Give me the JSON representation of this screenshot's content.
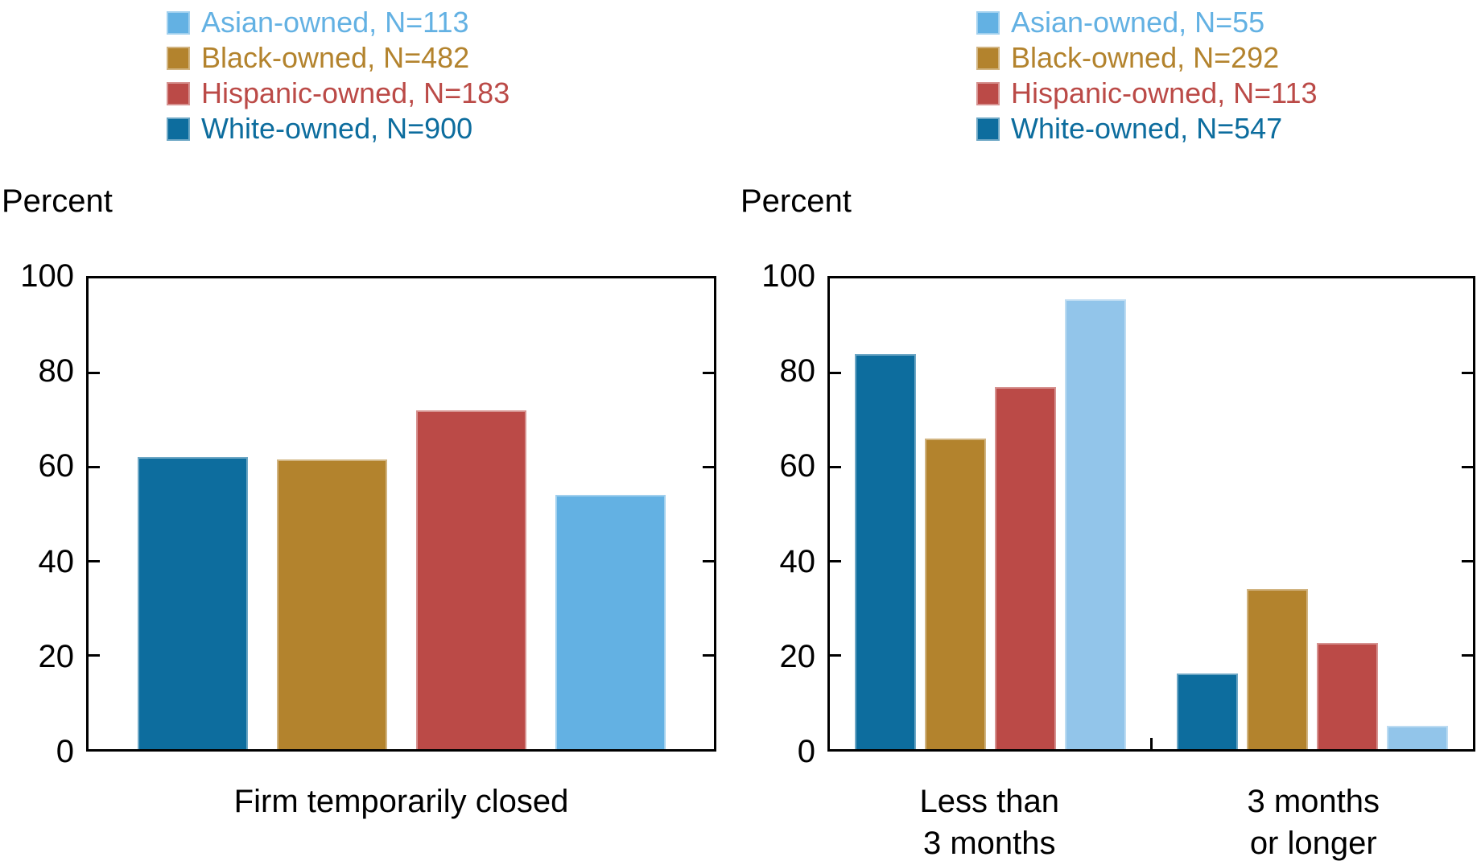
{
  "page": {
    "background": "#ffffff"
  },
  "colors": {
    "white_owned": "#0d6d9e",
    "black_owned": "#b3832d",
    "hispanic_owned": "#bb4a47",
    "asian_owned": "#63b1e3",
    "asian_owned_light": "#92c5ea",
    "axis": "#000000",
    "text": "#000000"
  },
  "legends": [
    {
      "name": "legend-left",
      "items": [
        {
          "label": "Asian-owned, N=113",
          "color": "#63b1e3"
        },
        {
          "label": "Black-owned, N=482",
          "color": "#b3832d"
        },
        {
          "label": "Hispanic-owned, N=183",
          "color": "#bb4a47"
        },
        {
          "label": "White-owned, N=900",
          "color": "#0d6d9e"
        }
      ]
    },
    {
      "name": "legend-right",
      "items": [
        {
          "label": "Asian-owned, N=55",
          "color": "#63b1e3"
        },
        {
          "label": "Black-owned, N=292",
          "color": "#b3832d"
        },
        {
          "label": "Hispanic-owned, N=113",
          "color": "#bb4a47"
        },
        {
          "label": "White-owned, N=547",
          "color": "#0d6d9e"
        }
      ]
    }
  ],
  "chart_data": [
    {
      "type": "bar",
      "title": "",
      "ylabel": "Percent",
      "xlabel": "",
      "ylim": [
        0,
        100
      ],
      "yticks": [
        0,
        20,
        40,
        60,
        80,
        100
      ],
      "grid": false,
      "legend_position": "top-left",
      "categories": [
        "Firm temporarily closed"
      ],
      "category_lines": [
        [
          "Firm temporarily closed"
        ]
      ],
      "series": [
        {
          "name": "White-owned, N=900",
          "color": "#0d6d9e",
          "values": [
            62
          ]
        },
        {
          "name": "Black-owned, N=482",
          "color": "#b3832d",
          "values": [
            61.5
          ]
        },
        {
          "name": "Hispanic-owned, N=183",
          "color": "#bb4a47",
          "values": [
            72
          ]
        },
        {
          "name": "Asian-owned, N=113",
          "color": "#63b1e3",
          "values": [
            54
          ]
        }
      ]
    },
    {
      "type": "bar",
      "title": "",
      "ylabel": "Percent",
      "xlabel": "",
      "ylim": [
        0,
        100
      ],
      "yticks": [
        0,
        20,
        40,
        60,
        80,
        100
      ],
      "grid": false,
      "legend_position": "top-right",
      "categories": [
        "Less than 3 months",
        "3 months or longer"
      ],
      "category_lines": [
        [
          "Less than",
          "3 months"
        ],
        [
          "3 months",
          "or longer"
        ]
      ],
      "series": [
        {
          "name": "White-owned, N=547",
          "color": "#0d6d9e",
          "values": [
            84,
            16
          ]
        },
        {
          "name": "Black-owned, N=292",
          "color": "#b3832d",
          "values": [
            66,
            34
          ]
        },
        {
          "name": "Hispanic-owned, N=113",
          "color": "#bb4a47",
          "values": [
            77,
            22.5
          ]
        },
        {
          "name": "Asian-owned, N=55",
          "color": "#92c5ea",
          "values": [
            95.5,
            5
          ]
        }
      ]
    }
  ]
}
